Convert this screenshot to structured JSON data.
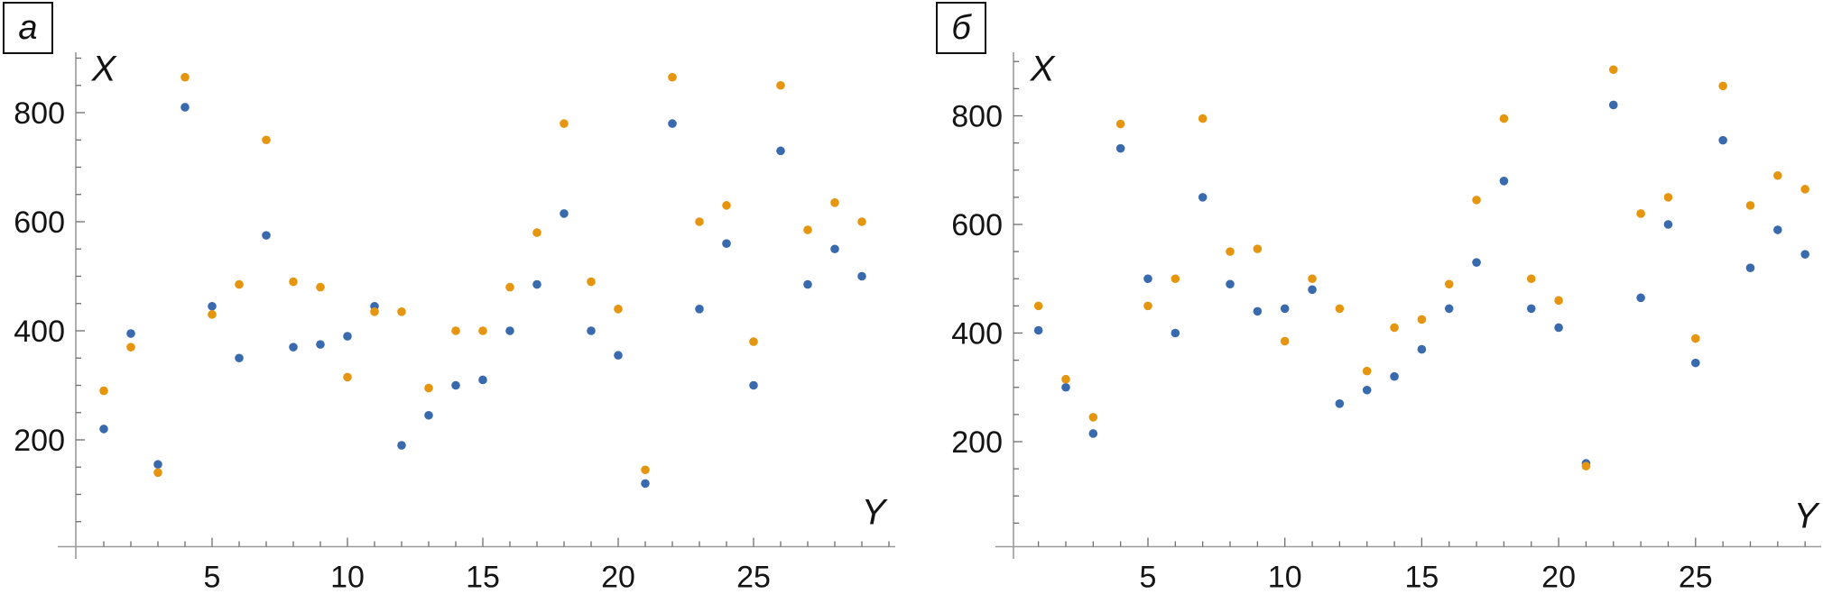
{
  "figure": {
    "background": "#ffffff",
    "axis_color": "#9b9b9b",
    "tick_color": "#6e6e6e",
    "text_color": "#141414"
  },
  "chart_data": [
    {
      "type": "scatter",
      "panel_label": "а",
      "xlabel": "Y",
      "ylabel": "X",
      "x": [
        1,
        2,
        3,
        4,
        5,
        6,
        7,
        8,
        9,
        10,
        11,
        12,
        13,
        14,
        15,
        16,
        17,
        18,
        19,
        20,
        21,
        22,
        23,
        24,
        25,
        26,
        27,
        28,
        29
      ],
      "series": [
        {
          "name": "blue",
          "color": "#3A6AAE",
          "values": [
            220,
            395,
            155,
            810,
            445,
            350,
            575,
            370,
            375,
            390,
            445,
            190,
            245,
            300,
            310,
            400,
            485,
            615,
            400,
            355,
            120,
            780,
            440,
            560,
            300,
            730,
            485,
            550,
            500
          ]
        },
        {
          "name": "orange",
          "color": "#E6950F",
          "values": [
            290,
            370,
            140,
            865,
            430,
            485,
            750,
            490,
            480,
            315,
            435,
            435,
            295,
            400,
            400,
            480,
            580,
            780,
            490,
            440,
            145,
            865,
            600,
            630,
            380,
            850,
            585,
            635,
            600
          ]
        }
      ],
      "x_ticks": [
        5,
        10,
        15,
        20,
        25
      ],
      "y_ticks": [
        200,
        400,
        600,
        800
      ],
      "x_minor_tick_step": 1,
      "y_minor_tick_step": 50,
      "xlim": [
        0,
        30
      ],
      "ylim": [
        0,
        930
      ],
      "grid": false,
      "legend": null
    },
    {
      "type": "scatter",
      "panel_label": "б",
      "xlabel": "Y",
      "ylabel": "X",
      "x": [
        1,
        2,
        3,
        4,
        5,
        6,
        7,
        8,
        9,
        10,
        11,
        12,
        13,
        14,
        15,
        16,
        17,
        18,
        19,
        20,
        21,
        22,
        23,
        24,
        25,
        26,
        27,
        28,
        29
      ],
      "series": [
        {
          "name": "blue",
          "color": "#3A6AAE",
          "values": [
            405,
            300,
            215,
            740,
            500,
            400,
            650,
            490,
            440,
            445,
            480,
            270,
            295,
            320,
            370,
            445,
            530,
            680,
            445,
            410,
            160,
            820,
            465,
            600,
            345,
            755,
            520,
            590,
            545
          ]
        },
        {
          "name": "orange",
          "color": "#E6950F",
          "values": [
            450,
            315,
            245,
            785,
            450,
            500,
            795,
            550,
            555,
            385,
            500,
            445,
            330,
            410,
            425,
            490,
            645,
            795,
            500,
            460,
            155,
            885,
            620,
            650,
            390,
            855,
            635,
            690,
            665
          ]
        }
      ],
      "x_ticks": [
        5,
        10,
        15,
        20,
        25
      ],
      "y_ticks": [
        200,
        400,
        600,
        800
      ],
      "x_minor_tick_step": 1,
      "y_minor_tick_step": 50,
      "xlim": [
        0,
        30
      ],
      "ylim": [
        0,
        930
      ],
      "grid": false,
      "legend": null
    }
  ]
}
